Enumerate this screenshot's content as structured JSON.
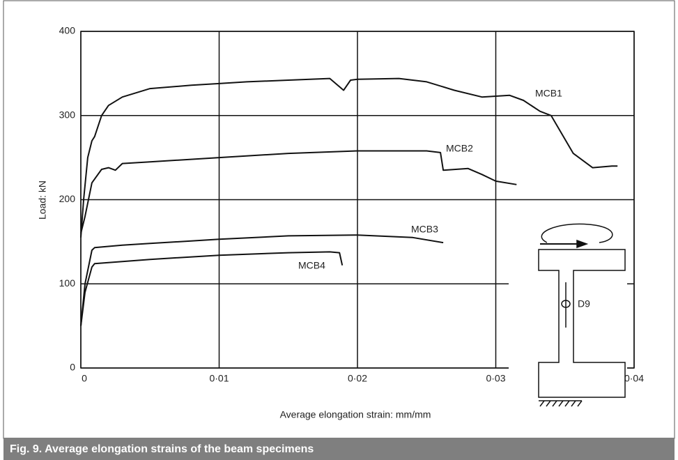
{
  "chart_data": {
    "type": "line",
    "caption": "Fig. 9. Average elongation strains of the beam specimens",
    "x_label": "Average elongation strain: mm/mm",
    "y_label": "Load: kN",
    "xlim": [
      0,
      0.04
    ],
    "ylim": [
      0,
      400
    ],
    "xticks": [
      0,
      {
        "value": 0.01,
        "label": "0·01"
      },
      {
        "value": 0.02,
        "label": "0·02"
      },
      {
        "value": 0.03,
        "label": "0·03"
      },
      {
        "value": 0.04,
        "label": "0·04"
      }
    ],
    "yticks": [
      0,
      100,
      200,
      300,
      400
    ],
    "grid": true,
    "annotations": [
      {
        "text": "D9"
      }
    ],
    "series": [
      {
        "name": "MCB1",
        "color": "#111111",
        "x": [
          0,
          0.0002,
          0.0005,
          0.0008,
          0.001,
          0.0015,
          0.002,
          0.003,
          0.005,
          0.008,
          0.01,
          0.012,
          0.015,
          0.018,
          0.019,
          0.0195,
          0.02,
          0.023,
          0.025,
          0.027,
          0.029,
          0.031,
          0.032,
          0.0332,
          0.034,
          0.0356,
          0.037,
          0.0384,
          0.0388
        ],
        "values": [
          155,
          200,
          250,
          270,
          275,
          300,
          312,
          322,
          332,
          336,
          338,
          340,
          342,
          344,
          330,
          342,
          343,
          344,
          340,
          330,
          322,
          324,
          318,
          305,
          300,
          255,
          238,
          240,
          240
        ]
      },
      {
        "name": "MCB2",
        "color": "#111111",
        "x": [
          0,
          0.0003,
          0.0008,
          0.0015,
          0.002,
          0.0025,
          0.003,
          0.005,
          0.01,
          0.015,
          0.02,
          0.025,
          0.026,
          0.0262,
          0.028,
          0.029,
          0.03,
          0.0315
        ],
        "values": [
          160,
          180,
          220,
          236,
          238,
          235,
          243,
          245,
          250,
          255,
          258,
          258,
          256,
          235,
          237,
          230,
          222,
          218
        ]
      },
      {
        "name": "MCB3",
        "color": "#111111",
        "x": [
          0,
          0.0003,
          0.0008,
          0.001,
          0.003,
          0.005,
          0.01,
          0.015,
          0.02,
          0.024,
          0.0262
        ],
        "values": [
          50,
          100,
          140,
          143,
          146,
          148,
          153,
          157,
          158,
          155,
          149
        ]
      },
      {
        "name": "MCB4",
        "color": "#111111",
        "x": [
          0,
          0.0003,
          0.0008,
          0.001,
          0.005,
          0.01,
          0.015,
          0.018,
          0.0187,
          0.0189
        ],
        "values": [
          50,
          90,
          120,
          124,
          129,
          134,
          137,
          138,
          137,
          122
        ]
      }
    ]
  }
}
